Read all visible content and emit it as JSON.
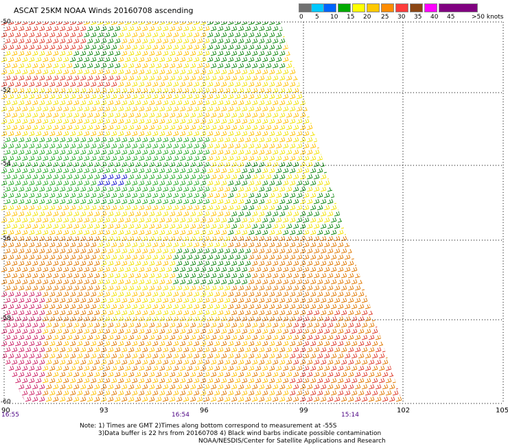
{
  "title": "ASCAT 25KM NOAA Winds 20160708 ascending",
  "legend": {
    "colors": [
      "#707070",
      "#00c8ff",
      "#0064ff",
      "#00aa00",
      "#ffff00",
      "#ffc800",
      "#ff8c00",
      "#ff3c3c",
      "#8b4513",
      "#ff00ff",
      "#800080"
    ],
    "ticks": [
      "0",
      "5",
      "10",
      "15",
      "20",
      "25",
      "30",
      "35",
      "40",
      "45",
      ">50 knots"
    ]
  },
  "axes": {
    "lat_labels": [
      "-50",
      "-52",
      "-54",
      "-56",
      "-58",
      "-60"
    ],
    "lon_labels": [
      "90",
      "93",
      "96",
      "99",
      "102",
      "105"
    ]
  },
  "time_labels": [
    "16:55",
    "16:54",
    "15:14"
  ],
  "notes": [
    "Note: 1) Times are GMT 2)Times along bottom correspond to measurement at -55S",
    "3)Data buffer is 22 hrs from 20160708 4) Black wind barbs indicate possible contamination",
    "NOAA/NESDIS/Center for Satellite Applications and Research"
  ]
}
